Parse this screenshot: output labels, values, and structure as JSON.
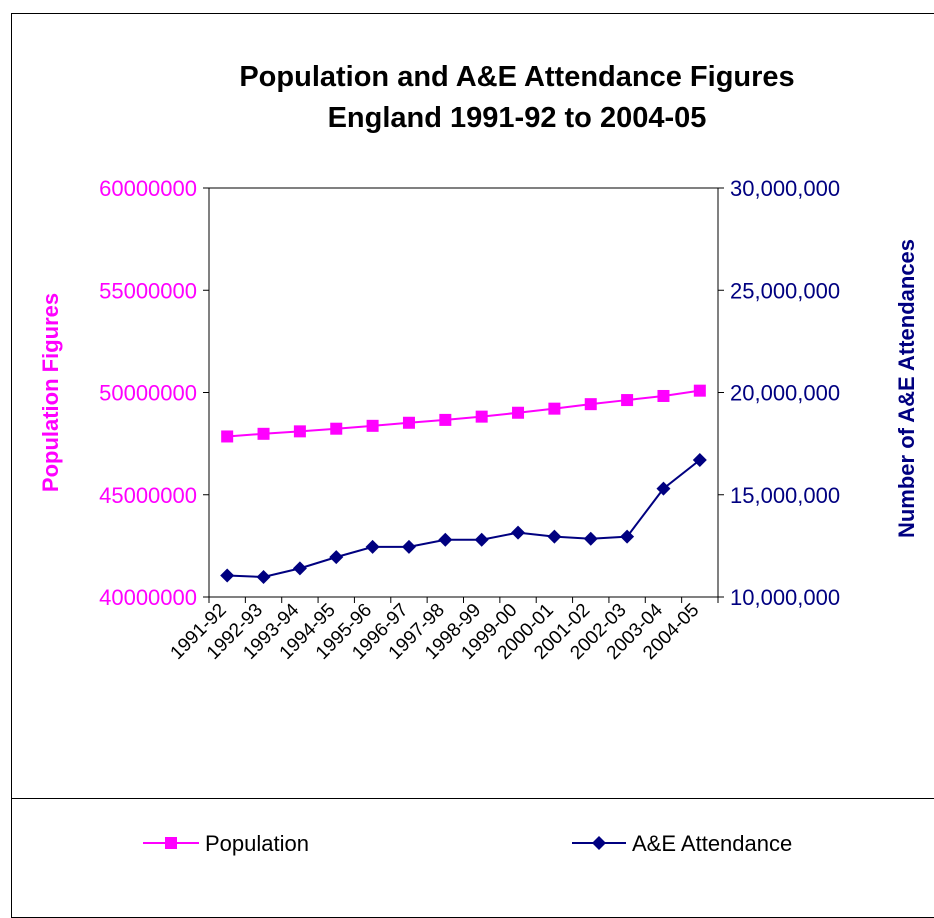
{
  "chart_data": {
    "type": "line",
    "title": [
      "Population and A&E Attendance Figures",
      "England 1991-92 to 2004-05"
    ],
    "categories": [
      "1991-92",
      "1992-93",
      "1993-94",
      "1994-95",
      "1995-96",
      "1996-97",
      "1997-98",
      "1998-99",
      "1999-00",
      "2000-01",
      "2001-02",
      "2002-03",
      "2003-04",
      "2004-05"
    ],
    "y_left": {
      "label": "Population Figures",
      "min": 40000000,
      "max": 60000000,
      "step": 5000000,
      "tick_labels": [
        "40000000",
        "45000000",
        "50000000",
        "55000000",
        "60000000"
      ],
      "color": "#FF00FF"
    },
    "y_right": {
      "label": "Number of A&E Attendances",
      "min": 10000000,
      "max": 30000000,
      "step": 5000000,
      "tick_labels": [
        "10,000,000",
        "15,000,000",
        "20,000,000",
        "25,000,000",
        "30,000,000"
      ],
      "color": "#000080"
    },
    "series": [
      {
        "name": "Population",
        "axis": "left",
        "color": "#FF00FF",
        "marker": "square",
        "values": [
          47850000,
          47980000,
          48100000,
          48230000,
          48370000,
          48520000,
          48660000,
          48820000,
          49010000,
          49210000,
          49430000,
          49630000,
          49830000,
          50090000
        ]
      },
      {
        "name": "A&E Attendance",
        "axis": "right",
        "color": "#000080",
        "marker": "diamond",
        "values": [
          11050000,
          10980000,
          11400000,
          11950000,
          12450000,
          12450000,
          12800000,
          12800000,
          13150000,
          12950000,
          12850000,
          12950000,
          15300000,
          16700000
        ]
      }
    ],
    "legend_position": "bottom",
    "grid": false
  }
}
